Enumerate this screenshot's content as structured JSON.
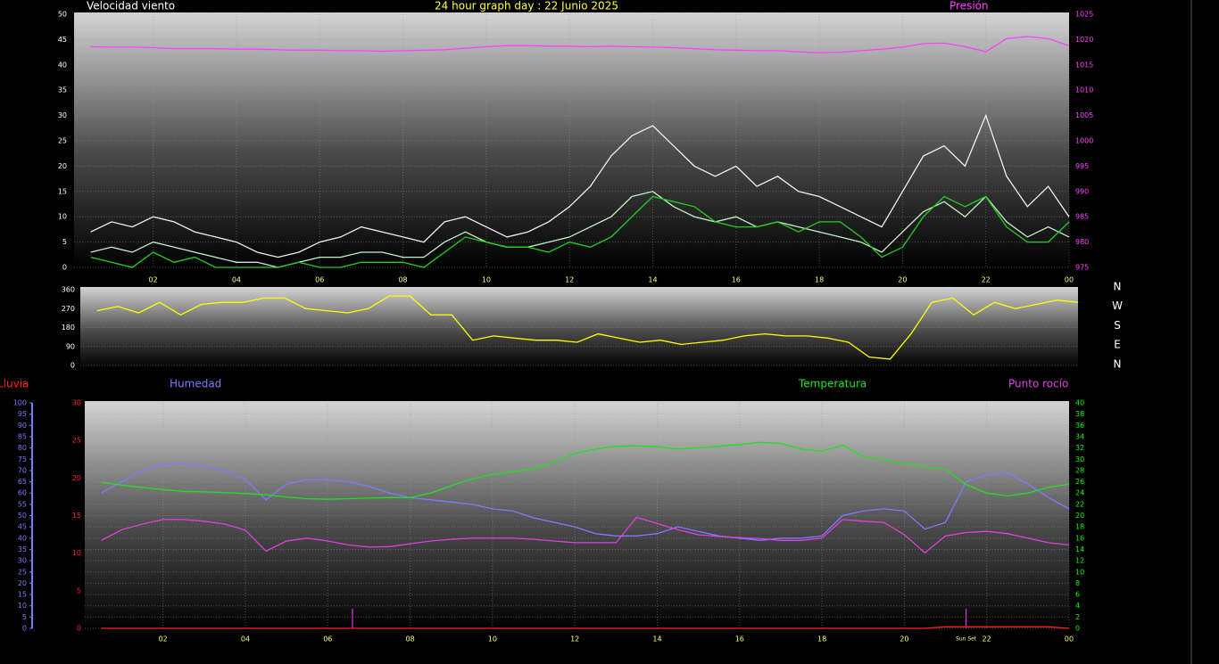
{
  "chart_data": [
    {
      "type": "line",
      "title": "24 hour graph day : 22 Junio 2025",
      "ylabel": "Velocidad viento",
      "y2label": "Presión",
      "x": [
        0.5,
        1,
        1.5,
        2,
        2.5,
        3,
        3.5,
        4,
        4.5,
        5,
        5.5,
        6,
        6.5,
        7,
        7.5,
        8,
        8.5,
        9,
        9.5,
        10,
        10.5,
        11,
        11.5,
        12,
        12.5,
        13,
        13.5,
        14,
        14.5,
        15,
        15.5,
        16,
        16.5,
        17,
        17.5,
        18,
        18.5,
        19,
        19.5,
        20,
        20.5,
        21,
        21.5,
        22,
        22.5,
        23,
        23.5,
        24
      ],
      "xlim": [
        0.1,
        24
      ],
      "xticks": [
        {
          "value": 2,
          "label": "02"
        },
        {
          "value": 4,
          "label": "04"
        },
        {
          "value": 6,
          "label": "06"
        },
        {
          "value": 8,
          "label": "08"
        },
        10,
        12,
        14,
        16,
        18,
        20,
        22,
        {
          "value": 24,
          "label": "00"
        }
      ],
      "ylim": [
        0,
        50
      ],
      "yticks": [
        0,
        5,
        10,
        15,
        20,
        25,
        30,
        35,
        40,
        45,
        50
      ],
      "ycolor": "#ffffff",
      "y2lim": [
        975,
        1025
      ],
      "y2ticks": [
        975,
        980,
        985,
        990,
        995,
        1000,
        1005,
        1010,
        1015,
        1020,
        1025
      ],
      "y2color": "#ff40ff",
      "grid": true,
      "grid_axis": "y",
      "series": [
        {
          "color": "#f0f0f0",
          "values": [
            7,
            9,
            8,
            10,
            9,
            7,
            6,
            5,
            3,
            2,
            3,
            5,
            6,
            8,
            7,
            6,
            5,
            9,
            10,
            8,
            6,
            7,
            9,
            12,
            16,
            22,
            26,
            28,
            24,
            20,
            18,
            20,
            16,
            18,
            15,
            14,
            12,
            10,
            8,
            15,
            22,
            24,
            20,
            30,
            18,
            12,
            16,
            10
          ]
        },
        {
          "color": "#c8f0c8",
          "values": [
            3,
            4,
            3,
            5,
            4,
            3,
            2,
            1,
            1,
            0,
            1,
            2,
            2,
            3,
            3,
            2,
            2,
            5,
            7,
            5,
            4,
            4,
            5,
            6,
            8,
            10,
            14,
            15,
            12,
            10,
            9,
            10,
            8,
            9,
            8,
            7,
            6,
            5,
            3,
            7,
            11,
            13,
            10,
            14,
            9,
            6,
            8,
            6
          ]
        },
        {
          "color": "#20d020",
          "values": [
            2,
            1,
            0,
            3,
            1,
            2,
            0,
            0,
            0,
            0,
            1,
            0,
            0,
            1,
            1,
            1,
            0,
            3,
            6,
            5,
            4,
            4,
            3,
            5,
            4,
            6,
            10,
            14,
            13,
            12,
            9,
            8,
            8,
            9,
            7,
            9,
            9,
            6,
            2,
            4,
            10,
            14,
            12,
            14,
            8,
            5,
            5,
            9
          ]
        },
        {
          "color": "#ff40ff",
          "axis": "y2",
          "values": [
            1018.6,
            1018.5,
            1018.5,
            1018.4,
            1018.2,
            1018.2,
            1018.2,
            1018.1,
            1018.1,
            1018.0,
            1017.9,
            1017.9,
            1017.8,
            1017.8,
            1017.7,
            1017.8,
            1017.9,
            1018.0,
            1018.3,
            1018.6,
            1018.8,
            1018.8,
            1018.7,
            1018.7,
            1018.6,
            1018.7,
            1018.6,
            1018.5,
            1018.4,
            1018.2,
            1018.0,
            1017.9,
            1017.8,
            1017.8,
            1017.6,
            1017.4,
            1017.5,
            1017.8,
            1018.1,
            1018.5,
            1019.2,
            1019.3,
            1018.6,
            1017.6,
            1020.2,
            1020.6,
            1020.2,
            1018.8
          ]
        }
      ]
    },
    {
      "type": "line",
      "x": [
        0.5,
        1,
        1.5,
        2,
        2.5,
        3,
        3.5,
        4,
        4.5,
        5,
        5.5,
        6,
        6.5,
        7,
        7.5,
        8,
        8.5,
        9,
        9.5,
        10,
        10.5,
        11,
        11.5,
        12,
        12.5,
        13,
        13.5,
        14,
        14.5,
        15,
        15.5,
        16,
        16.5,
        17,
        17.5,
        18,
        18.5,
        19,
        19.5,
        20,
        20.5,
        21,
        21.5,
        22,
        22.5,
        23,
        23.5,
        24
      ],
      "xlim": [
        0.1,
        24
      ],
      "ylim": [
        0,
        360
      ],
      "yticks": [
        0,
        90,
        180,
        270,
        360
      ],
      "ycolor": "#ffffff",
      "compass": [
        "N",
        "W",
        "S",
        "E",
        "N"
      ],
      "grid": true,
      "grid_axis": "y",
      "series": [
        {
          "color": "#ffff00",
          "values": [
            260,
            280,
            250,
            300,
            240,
            290,
            300,
            300,
            320,
            320,
            270,
            260,
            250,
            270,
            330,
            330,
            240,
            240,
            120,
            140,
            130,
            120,
            120,
            110,
            150,
            130,
            110,
            120,
            100,
            110,
            120,
            140,
            150,
            140,
            140,
            130,
            110,
            40,
            30,
            150,
            300,
            320,
            240,
            300,
            270,
            290,
            310,
            300
          ]
        }
      ]
    },
    {
      "type": "line",
      "x": [
        0.5,
        1,
        1.5,
        2,
        2.5,
        3,
        3.5,
        4,
        4.5,
        5,
        5.5,
        6,
        6.5,
        7,
        7.5,
        8,
        8.5,
        9,
        9.5,
        10,
        10.5,
        11,
        11.5,
        12,
        12.5,
        13,
        13.5,
        14,
        14.5,
        15,
        15.5,
        16,
        16.5,
        17,
        17.5,
        18,
        18.5,
        19,
        19.5,
        20,
        20.5,
        21,
        21.5,
        22,
        22.5,
        23,
        23.5,
        24
      ],
      "xlim": [
        0.1,
        24
      ],
      "xticks": [
        {
          "value": 2,
          "label": "02"
        },
        {
          "value": 4,
          "label": "04"
        },
        {
          "value": 6,
          "label": "06"
        },
        {
          "value": 8,
          "label": "08"
        },
        10,
        12,
        14,
        16,
        18,
        20,
        22,
        {
          "value": 24,
          "label": "00"
        }
      ],
      "ylim": [
        0,
        100
      ],
      "yticks": [
        0,
        5,
        10,
        15,
        20,
        25,
        30,
        35,
        40,
        45,
        50,
        55,
        60,
        65,
        70,
        75,
        80,
        85,
        90,
        95,
        100
      ],
      "ycolor": "#7b7bff",
      "y2lim": [
        0,
        40
      ],
      "y2ticks": [
        0,
        2,
        4,
        6,
        8,
        10,
        12,
        14,
        16,
        18,
        20,
        22,
        24,
        26,
        28,
        30,
        32,
        34,
        36,
        38,
        40
      ],
      "y2color": "#00ff00",
      "y3lim": [
        0,
        30
      ],
      "y3ticks": [
        0,
        5,
        10,
        15,
        20,
        25,
        30
      ],
      "y3color": "#ff2020",
      "grid": true,
      "grid_axis": "y2",
      "sun_lines": {
        "x": [
          6.6,
          21.5
        ],
        "labels": [
          null,
          "Sun Set"
        ],
        "color": "#ff40ff"
      },
      "series": [
        {
          "name": "Lluvia",
          "color": "#ff2020",
          "axis": "y3",
          "values": [
            0,
            0,
            0,
            0,
            0,
            0,
            0,
            0,
            0,
            0,
            0,
            0,
            0,
            0,
            0,
            0,
            0,
            0,
            0,
            0,
            0,
            0,
            0,
            0,
            0,
            0,
            0,
            0,
            0,
            0,
            0,
            0,
            0,
            0,
            0,
            0,
            0,
            0,
            0,
            0,
            0,
            0.2,
            0.2,
            0.2,
            0.2,
            0.2,
            0.2,
            0
          ]
        },
        {
          "name": "Humedad",
          "color": "#7b7bff",
          "axis": "y",
          "values": [
            60,
            65,
            70,
            73,
            73,
            72,
            70,
            66,
            57,
            64,
            66,
            66,
            65,
            63,
            60,
            58,
            57,
            56,
            55,
            53,
            52,
            49,
            47,
            45,
            42,
            41,
            41,
            42,
            45,
            43,
            41,
            40,
            39,
            40,
            40,
            41,
            50,
            52,
            53,
            52,
            44,
            47,
            65,
            68,
            69,
            64,
            58,
            53
          ]
        },
        {
          "name": "Temperatura",
          "color": "#20e020",
          "axis": "y2",
          "values": [
            25.9,
            25.4,
            25,
            24.6,
            24.3,
            24.2,
            24.1,
            23.9,
            23.7,
            23.3,
            23,
            22.9,
            23,
            23.1,
            23.2,
            23.2,
            24,
            25.3,
            26.5,
            27.3,
            27.8,
            28.3,
            29.5,
            31,
            31.8,
            32.3,
            32.4,
            32.2,
            31.8,
            32,
            32.3,
            32.6,
            33,
            32.8,
            31.8,
            31.4,
            32.5,
            30.5,
            29.8,
            29.2,
            28.6,
            28.2,
            25.5,
            24,
            23.5,
            24,
            25,
            25.6
          ]
        },
        {
          "name": "Punto rocío",
          "color": "#e040e0",
          "axis": "y2",
          "values": [
            15.6,
            17.5,
            18.5,
            19.3,
            19.3,
            19,
            18.5,
            17.4,
            13.7,
            15.5,
            16,
            15.5,
            14.8,
            14.4,
            14.5,
            15,
            15.5,
            15.8,
            16,
            16,
            16,
            15.8,
            15.5,
            15.2,
            15.2,
            15.2,
            19.7,
            18.6,
            17.5,
            16.6,
            16.3,
            16.1,
            15.9,
            15.6,
            15.6,
            16,
            19.3,
            19,
            18.8,
            16.6,
            13.4,
            16.4,
            17,
            17.2,
            16.8,
            16,
            15.2,
            14.8
          ]
        }
      ]
    }
  ]
}
